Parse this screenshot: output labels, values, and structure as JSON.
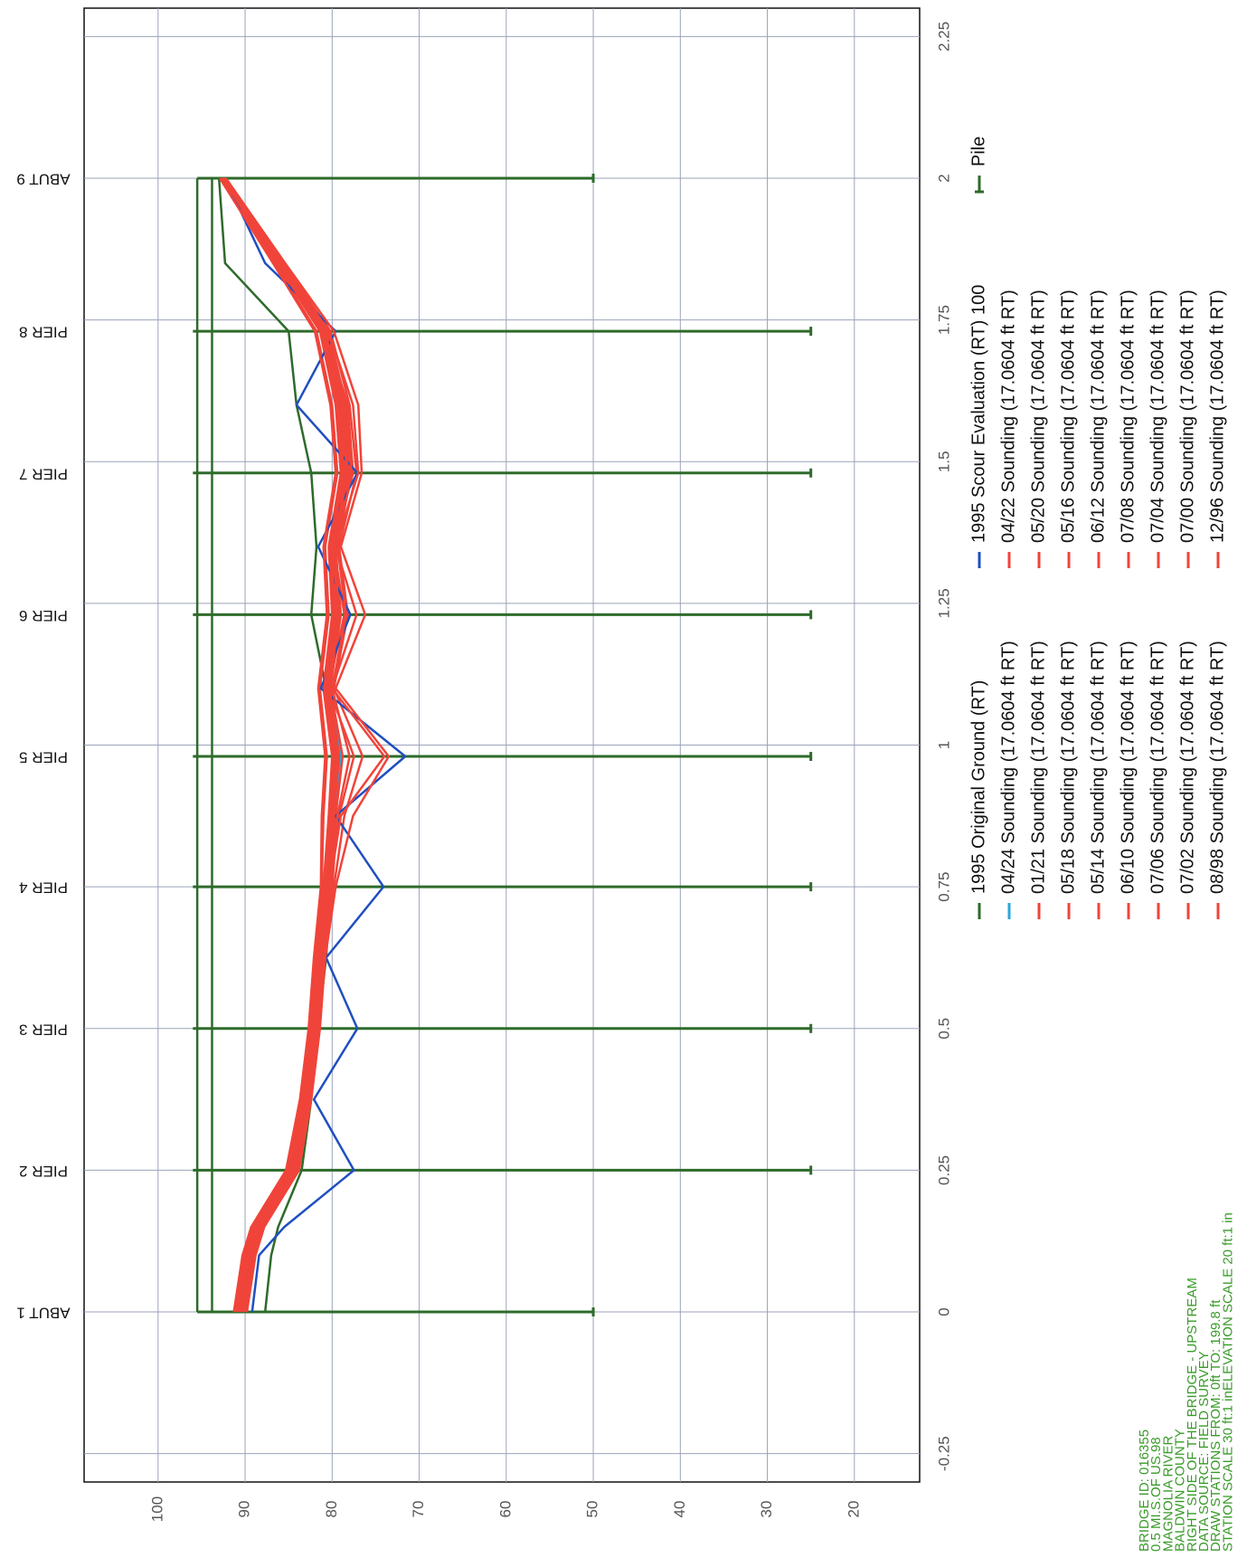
{
  "chart_data": {
    "type": "line",
    "x": [
      0,
      0.1,
      0.15,
      0.25,
      0.375,
      0.5,
      0.625,
      0.75,
      0.875,
      0.98,
      1.1,
      1.23,
      1.35,
      1.48,
      1.6,
      1.73,
      1.85,
      2.0
    ],
    "xlim": [
      -0.3,
      2.3
    ],
    "ylim": [
      12.5,
      108.5
    ],
    "xticks": [
      -0.25,
      0,
      0.25,
      0.5,
      0.75,
      1,
      1.25,
      1.5,
      1.75,
      2,
      2.25
    ],
    "yticks": [
      20,
      30,
      40,
      50,
      60,
      70,
      80,
      90,
      100
    ],
    "grid": true,
    "series": [
      {
        "name": "1995 Original Ground (RT)",
        "color": "#2e6b2a",
        "values": [
          87.7,
          87.0,
          86.2,
          83.5,
          82.4,
          81.6,
          80.7,
          80.1,
          79.6,
          79.0,
          80.7,
          82.4,
          81.8,
          82.4,
          84.1,
          85.0,
          92.3,
          93.0
        ]
      },
      {
        "name": "04/24 Sounding (17.0604 ft RT)",
        "color": "#2aa7d8",
        "values": [
          90.0,
          89.0,
          88.0,
          84.0,
          82.8,
          81.8,
          81.2,
          80.2,
          79.6,
          79.0,
          80.4,
          79.2,
          79.8,
          78.4,
          79.0,
          80.8,
          85.8,
          92.4
        ]
      },
      {
        "name": "01/21 Sounding (17.0604 ft RT)",
        "color": "#f0443a",
        "values": [
          90.8,
          89.8,
          88.7,
          84.8,
          83.2,
          82.3,
          81.7,
          80.8,
          80.2,
          79.8,
          80.8,
          79.6,
          80.2,
          78.6,
          79.2,
          81.2,
          86.2,
          92.6
        ]
      },
      {
        "name": "05/18 Sounding (17.0604 ft RT)",
        "color": "#f0443a",
        "values": [
          90.2,
          89.2,
          88.2,
          84.2,
          82.8,
          81.8,
          81.2,
          80.2,
          79.6,
          78.8,
          80.2,
          79.0,
          79.6,
          78.0,
          78.6,
          80.6,
          85.8,
          92.4
        ]
      },
      {
        "name": "05/14 Sounding (17.0604 ft RT)",
        "color": "#f0443a",
        "values": [
          90.6,
          89.6,
          88.6,
          84.6,
          83.1,
          82.1,
          81.6,
          80.6,
          79.2,
          77.5,
          80.4,
          78.6,
          79.8,
          77.6,
          78.2,
          80.8,
          86.0,
          92.5
        ]
      },
      {
        "name": "06/10 Sounding (17.0604 ft RT)",
        "color": "#f0443a",
        "values": [
          91.0,
          90.0,
          89.0,
          85.0,
          83.4,
          82.4,
          81.8,
          81.0,
          80.4,
          80.0,
          81.0,
          80.0,
          80.4,
          79.0,
          79.6,
          81.4,
          86.4,
          92.7
        ]
      },
      {
        "name": "07/06 Sounding (17.0604 ft RT)",
        "color": "#f0443a",
        "values": [
          90.4,
          89.4,
          88.4,
          84.4,
          82.9,
          81.9,
          81.4,
          80.4,
          80.0,
          79.4,
          80.6,
          79.4,
          80.0,
          78.4,
          79.0,
          81.0,
          85.9,
          92.5
        ]
      },
      {
        "name": "07/02 Sounding (17.0604 ft RT)",
        "color": "#f0443a",
        "values": [
          90.0,
          89.0,
          88.0,
          84.0,
          82.6,
          81.6,
          81.0,
          79.8,
          78.6,
          76.5,
          79.8,
          78.2,
          79.2,
          77.2,
          78.0,
          80.2,
          85.6,
          92.3
        ]
      },
      {
        "name": "08/98 Sounding (17.0604 ft RT)",
        "color": "#f0443a",
        "values": [
          91.2,
          90.2,
          89.2,
          85.2,
          83.6,
          82.6,
          82.0,
          81.2,
          81.0,
          80.6,
          81.4,
          80.4,
          80.8,
          79.4,
          80.0,
          81.8,
          86.6,
          92.8
        ]
      },
      {
        "name": "1995 Scour Evaluation (RT) 100",
        "color": "#1f4fbf",
        "values": [
          89.2,
          88.4,
          85.5,
          77.5,
          82.1,
          77.1,
          80.7,
          74.1,
          79.6,
          71.6,
          81.3,
          77.9,
          81.6,
          77.1,
          84.1,
          79.6,
          87.7,
          92.3
        ]
      },
      {
        "name": "04/22 Sounding (17.0604 ft RT)",
        "color": "#f0443a",
        "values": [
          90.6,
          89.6,
          88.5,
          84.5,
          83.0,
          82.0,
          81.5,
          80.3,
          79.0,
          74.0,
          80.0,
          77.2,
          79.6,
          77.0,
          77.6,
          80.4,
          85.8,
          92.4
        ]
      },
      {
        "name": "05/20 Sounding (17.0604 ft RT)",
        "color": "#f0443a",
        "values": [
          90.3,
          89.3,
          88.3,
          84.3,
          82.8,
          81.8,
          81.3,
          80.4,
          79.8,
          79.2,
          80.3,
          79.2,
          79.8,
          78.2,
          78.8,
          80.8,
          85.9,
          92.5
        ]
      },
      {
        "name": "05/16 Sounding (17.0604 ft RT)",
        "color": "#f0443a",
        "values": [
          90.7,
          89.7,
          88.6,
          84.6,
          83.1,
          82.2,
          81.6,
          80.7,
          80.1,
          79.6,
          80.7,
          79.7,
          80.1,
          78.7,
          79.2,
          81.1,
          86.1,
          92.6
        ]
      },
      {
        "name": "06/12 Sounding (17.0604 ft RT)",
        "color": "#f0443a",
        "values": [
          90.1,
          89.1,
          88.1,
          84.1,
          82.7,
          81.7,
          81.1,
          80.0,
          79.4,
          78.0,
          80.0,
          78.4,
          79.4,
          77.8,
          78.4,
          80.4,
          85.7,
          92.4
        ]
      },
      {
        "name": "07/08 Sounding (17.0604 ft RT)",
        "color": "#f0443a",
        "values": [
          90.9,
          89.9,
          88.9,
          84.9,
          83.3,
          82.3,
          81.8,
          80.9,
          80.3,
          79.9,
          80.9,
          79.9,
          80.3,
          78.9,
          79.4,
          81.3,
          86.3,
          92.6
        ]
      },
      {
        "name": "07/04 Sounding (17.0604 ft RT)",
        "color": "#f0443a",
        "values": [
          90.5,
          89.5,
          88.5,
          84.5,
          83.0,
          82.0,
          81.4,
          80.5,
          79.9,
          79.3,
          80.5,
          79.3,
          79.9,
          78.3,
          78.9,
          80.9,
          86.0,
          92.5
        ]
      },
      {
        "name": "07/00 Sounding (17.0604 ft RT)",
        "color": "#f0443a",
        "values": [
          89.8,
          88.8,
          87.8,
          83.8,
          82.4,
          81.4,
          80.8,
          79.6,
          77.6,
          73.5,
          79.6,
          76.2,
          79.0,
          76.6,
          77.0,
          79.8,
          85.4,
          92.2
        ]
      },
      {
        "name": "12/96 Sounding (17.0604 ft RT)",
        "color": "#f0443a",
        "values": [
          91.3,
          90.3,
          89.3,
          85.3,
          83.7,
          82.7,
          82.1,
          81.3,
          81.2,
          80.8,
          81.6,
          80.6,
          81.0,
          79.6,
          80.2,
          82.0,
          86.8,
          92.9
        ]
      }
    ],
    "piles": {
      "name": "Pile",
      "color": "#2e6b2a",
      "labels": [
        "ABUT 1",
        "PIER 2",
        "PIER 3",
        "PIER 4",
        "PIER 5",
        "PIER 6",
        "PIER 7",
        "PIER 8",
        "ABUT 9"
      ],
      "stations": [
        0,
        0.25,
        0.5,
        0.75,
        0.98,
        1.23,
        1.48,
        1.73,
        2.0
      ],
      "top": [
        95.5,
        96,
        96,
        96,
        96,
        96,
        96,
        96,
        95.5
      ],
      "tip": [
        50,
        25,
        25,
        25,
        25,
        25,
        25,
        25,
        50
      ]
    },
    "deck": {
      "top": 95.5,
      "bottom": 93.8
    },
    "notes": [
      "BRIDGE ID: 016355",
      "0.5 MI.S.OF US.98",
      "MAGNOLIA RIVER",
      "BALDWIN COUNTY",
      "RIGHT SIDE OF THE BRIDGE - UPSTREAM",
      "DATA SOURCE: FIELD SURVEY",
      "DRAW STATIONS FROM: 0ft TO: 199.8 ft",
      "STATION SCALE 30 ft:1 inELEVATION SCALE 20 ft:1 in"
    ]
  }
}
